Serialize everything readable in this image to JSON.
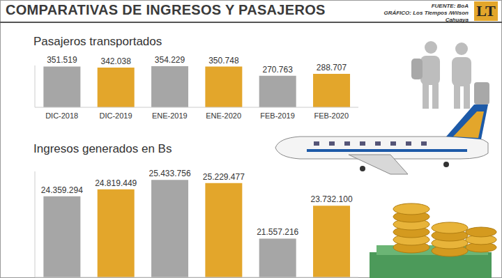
{
  "header": {
    "title": "COMPARATIVAS DE INGRESOS Y PASAJEROS",
    "source": "FUENTE: BoA",
    "credit": "GRÁFICO: Los Tiempos /Wilson Cahuaya",
    "logo": "LT"
  },
  "chart_data": [
    {
      "type": "bar",
      "title": "Pasajeros transportados",
      "categories": [
        "DIC-2018",
        "DIC-2019",
        "ENE-2019",
        "ENE-2020",
        "FEB-2019",
        "FEB-2020"
      ],
      "values": [
        351519,
        342038,
        354229,
        350748,
        270763,
        288707
      ],
      "value_labels": [
        "351.519",
        "342.038",
        "354.229",
        "350.748",
        "270.763",
        "288.707"
      ],
      "colors": [
        "#a6a6a6",
        "#e3a62b",
        "#a6a6a6",
        "#e3a62b",
        "#a6a6a6",
        "#e3a62b"
      ],
      "ylim": [
        0,
        360000
      ],
      "data_labels": true,
      "tick_labels": "x"
    },
    {
      "type": "bar",
      "title": "Ingresos generados en Bs",
      "categories": [
        null,
        null,
        null,
        null,
        null,
        null
      ],
      "values": [
        24359294,
        24819449,
        25433756,
        25229477,
        21557216,
        23732100
      ],
      "value_labels": [
        "24.359.294",
        "24.819.449",
        "25.433.756",
        "25.229.477",
        "21.557.216",
        "23.732.100"
      ],
      "colors": [
        "#a6a6a6",
        "#e3a62b",
        "#a6a6a6",
        "#e3a62b",
        "#a6a6a6",
        "#e3a62b"
      ],
      "ylim": [
        19000000,
        26000000
      ],
      "data_labels": true,
      "tick_labels": false
    }
  ]
}
